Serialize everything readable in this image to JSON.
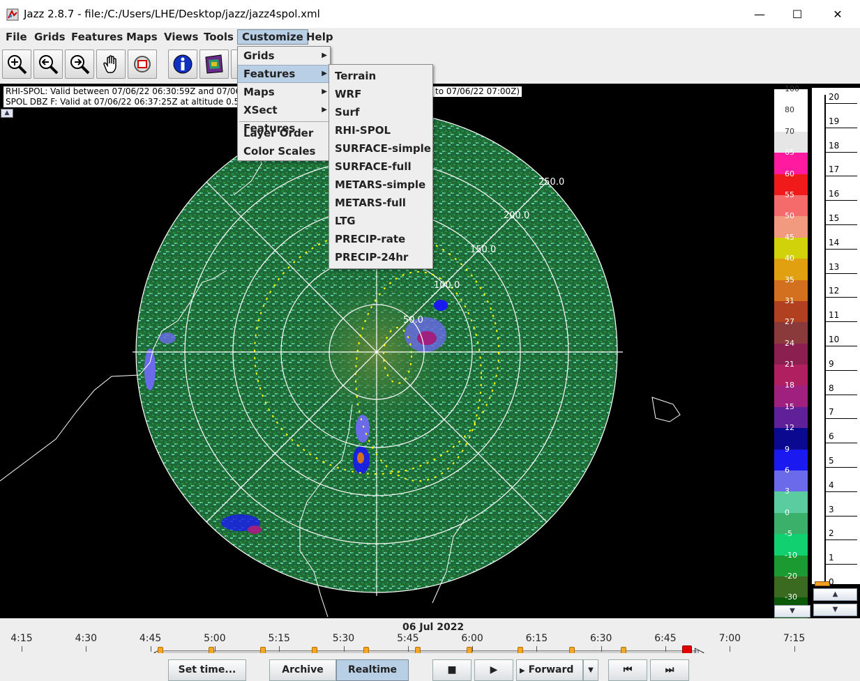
{
  "window": {
    "title": "Jazz 2.8.7 - file:/C:/Users/LHE/Desktop/jazz/jazz4spol.xml",
    "minimize": "—",
    "maximize": "☐",
    "close": "✕"
  },
  "menubar": {
    "items": [
      "File",
      "Grids",
      "Features",
      "Maps",
      "Views",
      "Tools",
      "Customize",
      "Help"
    ],
    "active": "Customize"
  },
  "toolbar": {
    "icons": [
      "zoom-in-icon",
      "zoom-out-icon",
      "zoom-fit-icon",
      "pan-hand-icon",
      "reset-icon",
      "info-icon",
      "layers-icon"
    ]
  },
  "info": {
    "line1": "RHI-SPOL: Valid between 07/06/22 06:30:59Z  and 07/06/",
    "line2": "SPOL DBZ F: Valid at 07/06/22 06:37:25Z at altitude 0.5",
    "line1_tail": " to 07/06/22 07:00Z)"
  },
  "customize_menu": {
    "items": [
      {
        "label": "Grids",
        "submenu": true
      },
      {
        "label": "Features",
        "submenu": true,
        "active": true
      },
      {
        "label": "Maps",
        "submenu": true
      },
      {
        "label": "XSect Features",
        "submenu": true
      },
      {
        "label": "Layer Order",
        "submenu": false
      },
      {
        "label": "Color Scales",
        "submenu": false
      }
    ]
  },
  "features_submenu": {
    "items": [
      "Terrain",
      "WRF",
      "Surf",
      "RHI-SPOL",
      "SURFACE-simple",
      "SURFACE-full",
      "METARS-simple",
      "METARS-full",
      "LTG",
      "PRECIP-rate",
      "PRECIP-24hr"
    ]
  },
  "radar": {
    "ring_labels": [
      "50.0",
      "100.0",
      "150.0",
      "200.0",
      "250.0"
    ]
  },
  "color_scale": {
    "entries": [
      {
        "label": "100",
        "color": "#ffffff"
      },
      {
        "label": "80",
        "color": "#ffffff"
      },
      {
        "label": "70",
        "color": "#e6e6e6"
      },
      {
        "label": "65",
        "color": "#ff1aa0"
      },
      {
        "label": "60",
        "color": "#f01a1a"
      },
      {
        "label": "55",
        "color": "#f56a6a"
      },
      {
        "label": "50",
        "color": "#f29a80"
      },
      {
        "label": "45",
        "color": "#d2d20a"
      },
      {
        "label": "40",
        "color": "#e0a010"
      },
      {
        "label": "35",
        "color": "#d27020"
      },
      {
        "label": "31",
        "color": "#b04020"
      },
      {
        "label": "27",
        "color": "#8a3a3a"
      },
      {
        "label": "24",
        "color": "#8a1f50"
      },
      {
        "label": "21",
        "color": "#b02060"
      },
      {
        "label": "18",
        "color": "#a02080"
      },
      {
        "label": "15",
        "color": "#602098"
      },
      {
        "label": "12",
        "color": "#0a0a90"
      },
      {
        "label": "9",
        "color": "#1a1af0"
      },
      {
        "label": "6",
        "color": "#6a6aea"
      },
      {
        "label": "3",
        "color": "#5acca0"
      },
      {
        "label": "0",
        "color": "#3ab06a"
      },
      {
        "label": "-5",
        "color": "#10d070"
      },
      {
        "label": "-10",
        "color": "#1a9a30"
      },
      {
        "label": "-20",
        "color": "#3a6a20"
      },
      {
        "label": "-30",
        "color": "#0a5a0a"
      }
    ]
  },
  "altitude_scale": {
    "labels": [
      "20",
      "19",
      "18",
      "17",
      "16",
      "15",
      "14",
      "13",
      "12",
      "11",
      "10",
      "9",
      "8",
      "7",
      "6",
      "5",
      "4",
      "3",
      "2",
      "1",
      "0"
    ]
  },
  "timeline": {
    "date": "06 Jul 2022",
    "times": [
      "4:15",
      "4:30",
      "4:45",
      "5:00",
      "5:15",
      "5:30",
      "5:45",
      "6:00",
      "6:15",
      "6:30",
      "6:45",
      "7:00",
      "7:15"
    ]
  },
  "controls": {
    "set_time": "Set time...",
    "archive": "Archive",
    "realtime": "Realtime",
    "stop": "■",
    "play": "▶",
    "direction": "Forward",
    "dropdown": "▼",
    "first": "⏮",
    "last": "⏭"
  }
}
